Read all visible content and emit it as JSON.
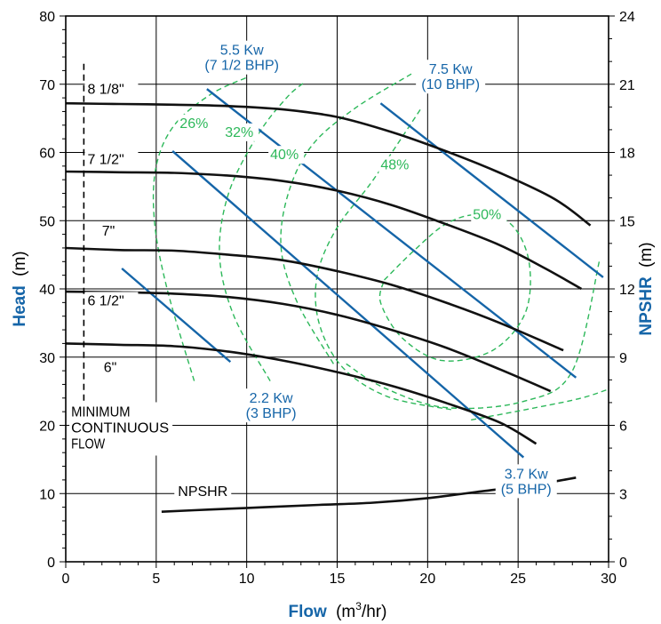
{
  "chart_data": {
    "type": "line",
    "xlabel_bold": "Flow",
    "xlabel_unit": "(m",
    "xlabel_sup": "3",
    "xlabel_tail": "/hr)",
    "ylabel_bold": "Head",
    "ylabel_unit": "(m)",
    "y2label_bold": "NPSHR",
    "y2label_unit": "(m)",
    "xlim": [
      0,
      30
    ],
    "ylim": [
      0,
      80
    ],
    "y2lim": [
      0,
      24
    ],
    "xticks": [
      "0",
      "5",
      "10",
      "15",
      "20",
      "25",
      "30"
    ],
    "yticks": [
      "0",
      "10",
      "20",
      "30",
      "40",
      "50",
      "60",
      "70",
      "80"
    ],
    "y2ticks": [
      "0",
      "3",
      "6",
      "9",
      "12",
      "15",
      "18",
      "21",
      "24"
    ],
    "grid": true,
    "colors": {
      "head": "#111111",
      "power": "#1565a8",
      "efficiency": "#2db85a",
      "axis": "#000000"
    },
    "head_curves": [
      {
        "name": "8 1/8\"",
        "points": [
          [
            0,
            67.2
          ],
          [
            3,
            67.1
          ],
          [
            6,
            67
          ],
          [
            9,
            66.8
          ],
          [
            12,
            66.3
          ],
          [
            15,
            65.2
          ],
          [
            18,
            63
          ],
          [
            21,
            60.2
          ],
          [
            24,
            57
          ],
          [
            27,
            53.2
          ],
          [
            29,
            49.3
          ]
        ]
      },
      {
        "name": "7 1/2\"",
        "points": [
          [
            0,
            57.2
          ],
          [
            3,
            57.1
          ],
          [
            6,
            57
          ],
          [
            9,
            56.6
          ],
          [
            12,
            55.8
          ],
          [
            15,
            54.4
          ],
          [
            18,
            52.3
          ],
          [
            21,
            49.5
          ],
          [
            24,
            46.4
          ],
          [
            26.5,
            43
          ],
          [
            28.5,
            40
          ]
        ]
      },
      {
        "name": "7\"",
        "points": [
          [
            0,
            46
          ],
          [
            3,
            45.7
          ],
          [
            6,
            45.6
          ],
          [
            9,
            45
          ],
          [
            12,
            44.2
          ],
          [
            15,
            42.6
          ],
          [
            18,
            40.6
          ],
          [
            21,
            38
          ],
          [
            24,
            35
          ],
          [
            27.5,
            31
          ]
        ]
      },
      {
        "name": "6 1/2\"",
        "points": [
          [
            0,
            39.6
          ],
          [
            3,
            39.5
          ],
          [
            6,
            39.3
          ],
          [
            9,
            38.8
          ],
          [
            12,
            37.8
          ],
          [
            15,
            36.2
          ],
          [
            18,
            34
          ],
          [
            21,
            31.4
          ],
          [
            24,
            28.2
          ],
          [
            26.8,
            25
          ]
        ]
      },
      {
        "name": "6\"",
        "points": [
          [
            0,
            32
          ],
          [
            3,
            31.8
          ],
          [
            6,
            31.6
          ],
          [
            9,
            30.8
          ],
          [
            12,
            29.5
          ],
          [
            15,
            27.8
          ],
          [
            18,
            25.8
          ],
          [
            21,
            23.3
          ],
          [
            24,
            20.4
          ],
          [
            26,
            17.3
          ]
        ]
      }
    ],
    "npshr_curve": {
      "name": "NPSHR",
      "points": [
        [
          5.3,
          2.2
        ],
        [
          8,
          2.3
        ],
        [
          11,
          2.4
        ],
        [
          14,
          2.5
        ],
        [
          17,
          2.6
        ],
        [
          20,
          2.8
        ],
        [
          23,
          3.1
        ],
        [
          26,
          3.4
        ],
        [
          28.2,
          3.7
        ]
      ]
    },
    "power_lines": [
      {
        "label1": "2.2 Kw",
        "label2": "(3 BHP)",
        "points": [
          [
            3.1,
            43
          ],
          [
            9.1,
            29.3
          ]
        ],
        "label_pos": [
          9.8,
          23.3
        ]
      },
      {
        "label1": "3.7 Kw",
        "label2": "(5 BHP)",
        "points": [
          [
            5.9,
            60.2
          ],
          [
            25.3,
            15.3
          ]
        ],
        "label_pos": [
          23.9,
          12.2
        ]
      },
      {
        "label1": "5.5 Kw",
        "label2": "(7 1/2 BHP)",
        "points": [
          [
            7.8,
            69.3
          ],
          [
            28.2,
            27
          ]
        ],
        "label_pos": [
          7.3,
          74.3
        ]
      },
      {
        "label1": "7.5 Kw",
        "label2": "(10 BHP)",
        "points": [
          [
            17.4,
            67.2
          ],
          [
            29.7,
            41.7
          ]
        ],
        "label_pos": [
          19.5,
          71.5
        ]
      }
    ],
    "efficiency_curves": [
      {
        "label": "26%",
        "label_pos": [
          6.3,
          63.6
        ],
        "points": [
          [
            7.1,
            26.5
          ],
          [
            5.6,
            40
          ],
          [
            4.9,
            50
          ],
          [
            5,
            58
          ],
          [
            6,
            64
          ],
          [
            8,
            68.5
          ],
          [
            10,
            71
          ]
        ]
      },
      {
        "label": "32%",
        "label_pos": [
          8.8,
          62.3
        ],
        "points": [
          [
            11.3,
            26.5
          ],
          [
            9.3,
            36
          ],
          [
            8.5,
            45
          ],
          [
            9,
            54
          ],
          [
            10.6,
            62.5
          ],
          [
            12.2,
            68
          ],
          [
            13.2,
            70.3
          ]
        ]
      },
      {
        "label": "40%",
        "label_pos": [
          11.3,
          59
        ],
        "points": [
          [
            14.8,
            29
          ],
          [
            12.8,
            38
          ],
          [
            11.9,
            46
          ],
          [
            12.3,
            54
          ],
          [
            13.6,
            61
          ],
          [
            16,
            66.5
          ],
          [
            19.1,
            71.5
          ]
        ]
      },
      {
        "label": "48%",
        "label_pos": [
          17.4,
          57.5
        ],
        "points": [
          [
            21.3,
            22.3
          ],
          [
            17.8,
            24.2
          ],
          [
            15.3,
            28.5
          ],
          [
            14,
            35
          ],
          [
            13.9,
            42
          ],
          [
            15,
            49
          ],
          [
            17,
            56
          ],
          [
            19.6,
            66.3
          ]
        ]
      },
      {
        "label": "50%",
        "label_pos": [
          22.5,
          50.2
        ],
        "points": [
          [
            17.6,
            41.3
          ],
          [
            19.2,
            45.5
          ],
          [
            21,
            49.5
          ],
          [
            22.8,
            50.9
          ],
          [
            24.6,
            49.5
          ],
          [
            25.6,
            44
          ],
          [
            25.4,
            36.5
          ],
          [
            23.6,
            31
          ],
          [
            20.8,
            29.5
          ],
          [
            18.6,
            32.8
          ],
          [
            17.4,
            38
          ],
          [
            17.6,
            41.3
          ]
        ]
      },
      {
        "label": "",
        "label_pos": [
          0,
          0
        ],
        "points": [
          [
            15.5,
            29
          ],
          [
            17.6,
            25.5
          ],
          [
            21,
            22.6
          ],
          [
            25.3,
            23.5
          ],
          [
            28,
            28
          ],
          [
            29.5,
            44.2
          ]
        ]
      },
      {
        "label": "",
        "label_pos": [
          0,
          0
        ],
        "points": [
          [
            22.4,
            20.8
          ],
          [
            26,
            22.6
          ],
          [
            28.5,
            24
          ],
          [
            30,
            25.3
          ]
        ]
      }
    ],
    "head_labels": [
      {
        "text": "8 1/8\"",
        "pos": [
          1.2,
          68.6
        ]
      },
      {
        "text": "7 1/2\"",
        "pos": [
          1.2,
          58.3
        ]
      },
      {
        "text": "7\"",
        "pos": [
          2,
          47.8
        ]
      },
      {
        "text": "6 1/2\"",
        "pos": [
          1.2,
          37.6
        ]
      },
      {
        "text": "6\"",
        "pos": [
          2.1,
          27.8
        ]
      }
    ],
    "npshr_label": {
      "text": "NPSHR",
      "pos": [
        6.2,
        10.4
      ]
    },
    "mcf": {
      "x": 1,
      "y_top": 73,
      "line1": "MINIMUM",
      "line2": "CONTINUOUS",
      "line3": "FLOW"
    }
  }
}
